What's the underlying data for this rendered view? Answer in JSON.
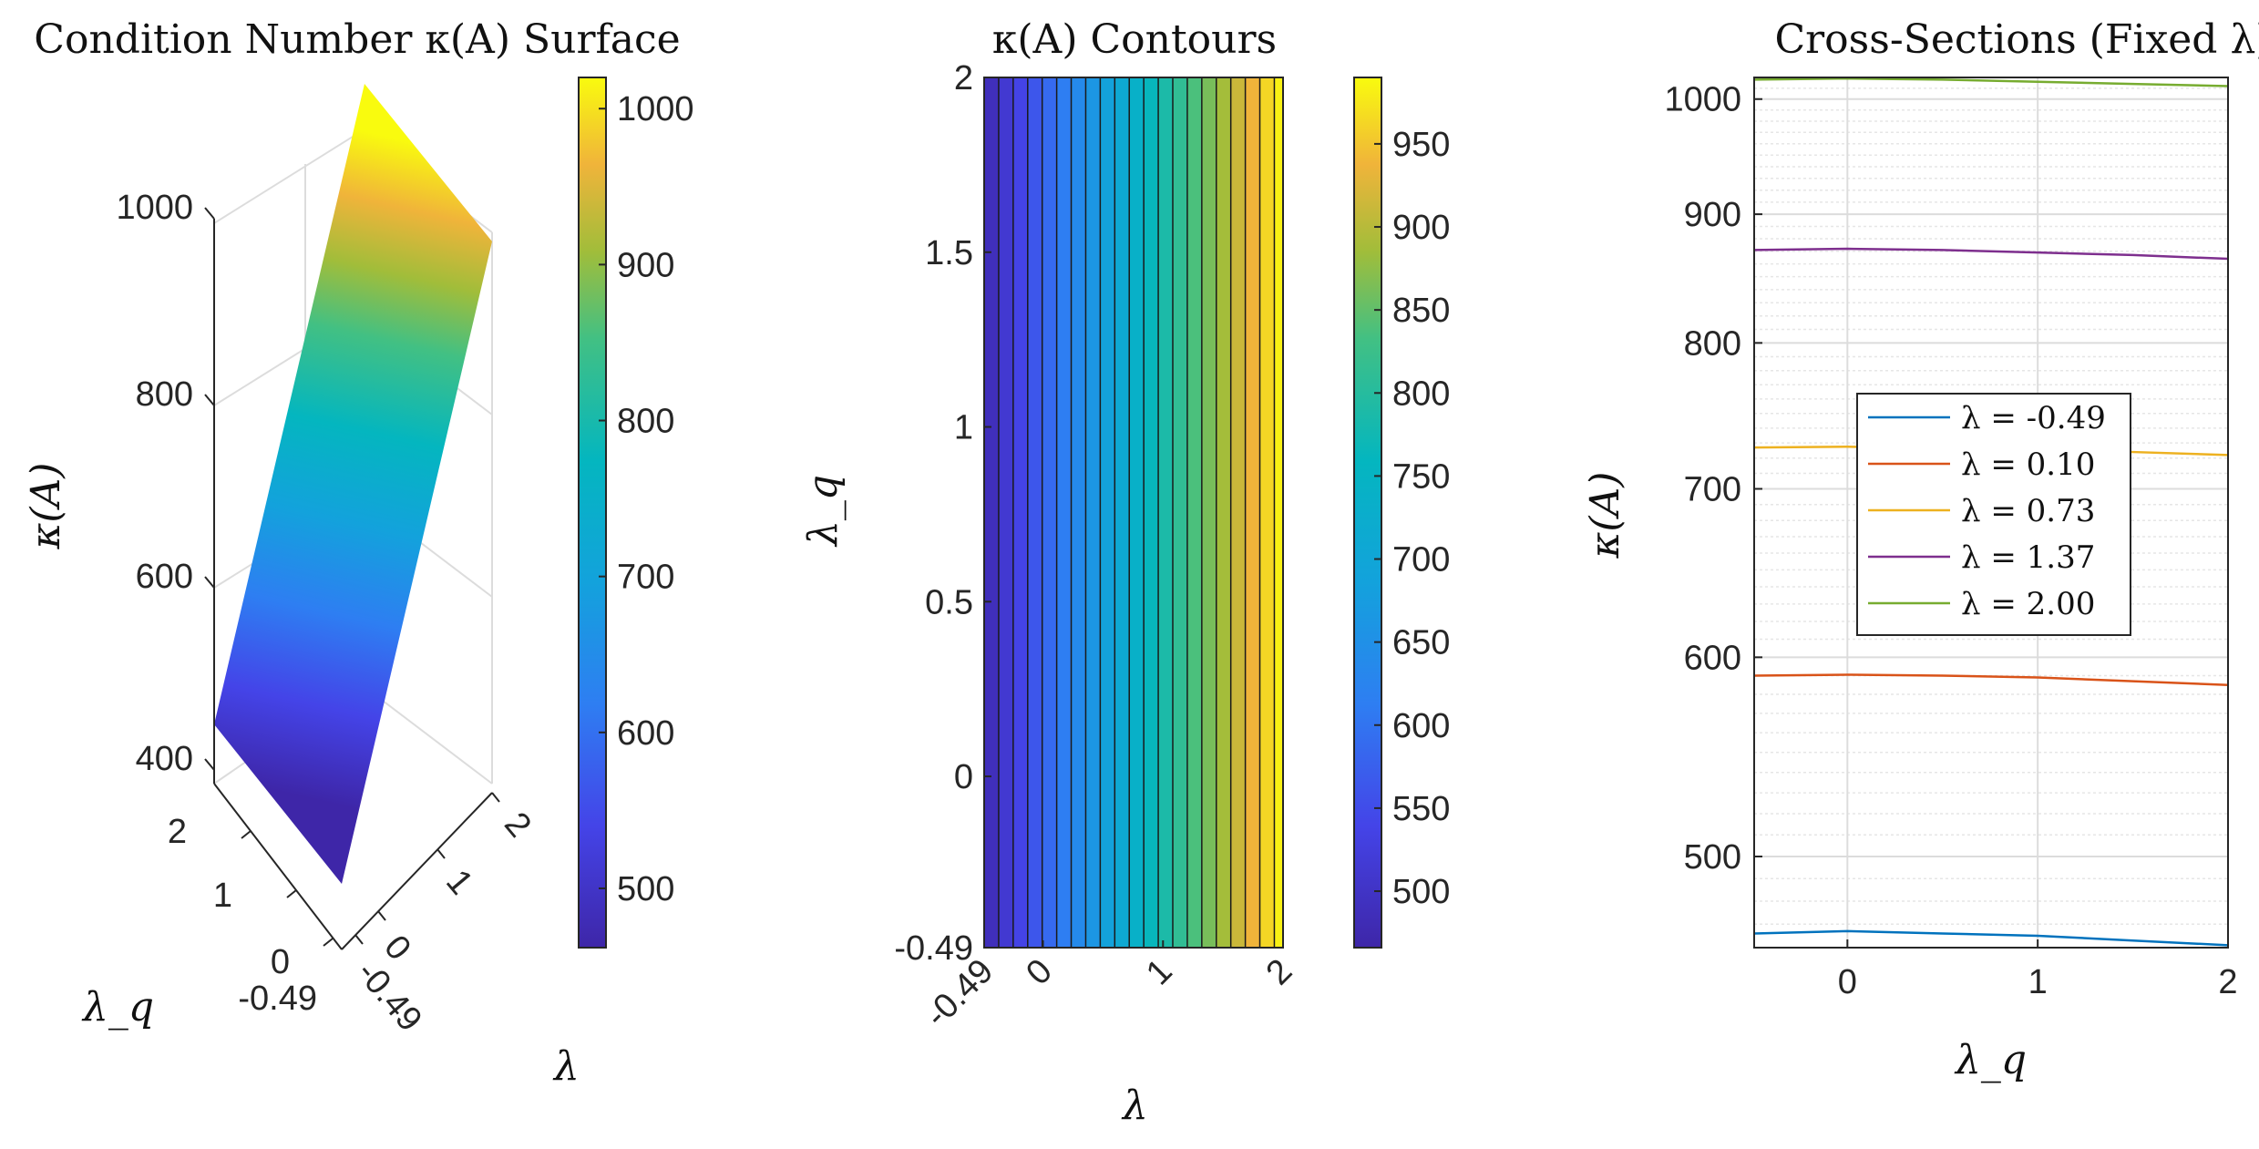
{
  "chart_data": [
    {
      "type": "surface",
      "title": "Condition Number κ(A) Surface",
      "xlabel": "λ",
      "ylabel": "λ_q",
      "zlabel": "κ(A)",
      "x_ticks": [
        "-0.49",
        "0",
        "1",
        "2"
      ],
      "y_ticks": [
        "-0.49",
        "0",
        "1",
        "2"
      ],
      "z_ticks": [
        "400",
        "600",
        "800",
        "1000"
      ],
      "xlim": [
        -0.49,
        2
      ],
      "ylim": [
        -0.49,
        2
      ],
      "zlim": [
        400,
        1020
      ],
      "corner_values": {
        "lambda_min": 460,
        "lambda_max": 1020
      },
      "colormap": "parula",
      "colorbar": {
        "range": [
          462,
          1020
        ],
        "ticks": [
          "500",
          "600",
          "700",
          "800",
          "900",
          "1000"
        ]
      }
    },
    {
      "type": "contour",
      "title": "κ(A) Contours",
      "xlabel": "λ",
      "ylabel": "λ_q",
      "x_ticks": [
        "-0.49",
        "0",
        "1",
        "2"
      ],
      "y_ticks": [
        "-0.49",
        "0",
        "0.5",
        "1",
        "1.5",
        "2"
      ],
      "xlim": [
        -0.49,
        2
      ],
      "ylim": [
        -0.49,
        2
      ],
      "levels": [
        475,
        500,
        525,
        550,
        575,
        600,
        625,
        650,
        675,
        700,
        725,
        750,
        775,
        800,
        825,
        850,
        875,
        900,
        925,
        950,
        975
      ],
      "colorbar": {
        "range": [
          466,
          990
        ],
        "ticks": [
          "500",
          "550",
          "600",
          "650",
          "700",
          "750",
          "800",
          "850",
          "900",
          "950"
        ]
      }
    },
    {
      "type": "line",
      "title": "Cross-Sections (Fixed λ)",
      "xlabel": "λ_q",
      "ylabel": "κ(A)",
      "yscale": "log",
      "grid": true,
      "x_ticks": [
        "0",
        "1",
        "2"
      ],
      "y_ticks": [
        "500",
        "600",
        "700",
        "800",
        "900",
        "1000"
      ],
      "xlim": [
        -0.49,
        2
      ],
      "ylim": [
        460,
        1020
      ],
      "legend_position": "center-left",
      "x": [
        -0.49,
        0,
        0.5,
        1,
        1.5,
        2
      ],
      "series": [
        {
          "name": "λ = -0.49",
          "color": "#0072BD",
          "values": [
            466,
            467,
            466,
            465,
            463,
            461
          ]
        },
        {
          "name": "λ = 0.10",
          "color": "#D95319",
          "values": [
            590,
            590.5,
            590,
            589,
            587,
            585
          ]
        },
        {
          "name": "λ = 0.73",
          "color": "#EDB120",
          "values": [
            727,
            727.5,
            727,
            725.5,
            724,
            722
          ]
        },
        {
          "name": "λ = 1.37",
          "color": "#7E2F8E",
          "values": [
            871,
            872,
            871,
            869,
            867,
            864
          ]
        },
        {
          "name": "λ = 2.00",
          "color": "#77AC30",
          "values": [
            1018,
            1019,
            1018,
            1016,
            1014,
            1012
          ]
        }
      ]
    }
  ]
}
